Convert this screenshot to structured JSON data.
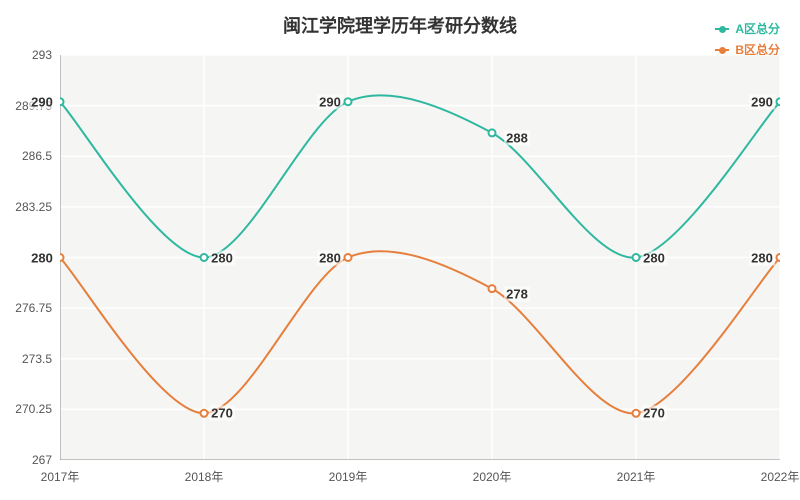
{
  "title": "闽江学院理学历年考研分数线",
  "legend": [
    {
      "label": "A区总分",
      "color": "#2fb8a0"
    },
    {
      "label": "B区总分",
      "color": "#e67e3c"
    }
  ],
  "chart": {
    "type": "line",
    "background_color": "#f5f5f3",
    "grid_color": "#ffffff",
    "axis_color": "#888888",
    "font_family": "Microsoft YaHei, Arial, sans-serif",
    "title_fontsize": 18,
    "label_fontsize": 12,
    "data_label_fontsize": 13,
    "line_width": 2,
    "marker_radius": 3.5,
    "categories": [
      "2017年",
      "2018年",
      "2019年",
      "2020年",
      "2021年",
      "2022年"
    ],
    "ylim": [
      267,
      293
    ],
    "yticks": [
      267,
      270.25,
      273.5,
      276.75,
      280,
      283.25,
      286.5,
      289.75,
      293
    ],
    "series": [
      {
        "name": "A区总分",
        "color": "#2fb8a0",
        "values": [
          290,
          280,
          290,
          288,
          280,
          290
        ],
        "label_offsets": [
          [
            -18,
            0
          ],
          [
            18,
            0
          ],
          [
            -18,
            0
          ],
          [
            25,
            5
          ],
          [
            18,
            0
          ],
          [
            -18,
            0
          ]
        ]
      },
      {
        "name": "B区总分",
        "color": "#e67e3c",
        "values": [
          280,
          270,
          280,
          278,
          270,
          280
        ],
        "label_offsets": [
          [
            -18,
            0
          ],
          [
            18,
            0
          ],
          [
            -18,
            0
          ],
          [
            25,
            5
          ],
          [
            18,
            0
          ],
          [
            -18,
            0
          ]
        ]
      }
    ]
  }
}
